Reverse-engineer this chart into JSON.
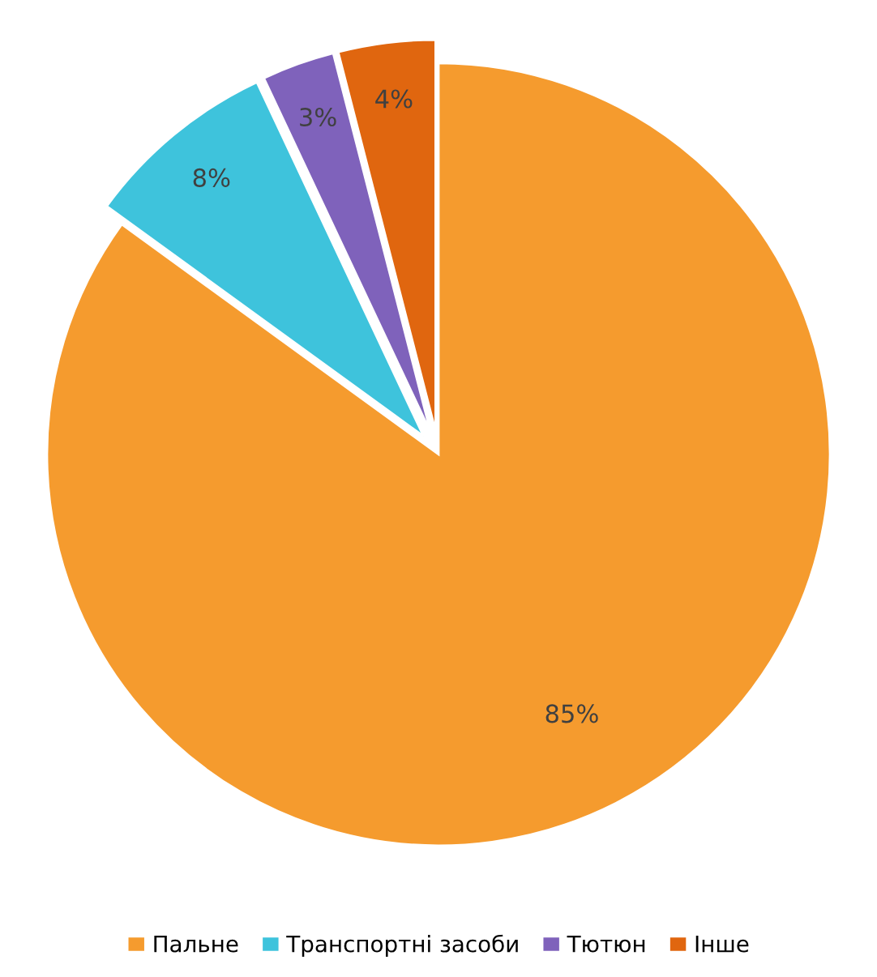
{
  "chart_data": {
    "type": "pie",
    "categories": [
      "Пальне",
      "Транспортні засоби",
      "Тютюн",
      "Інше"
    ],
    "values": [
      85,
      8,
      3,
      4
    ],
    "colors": [
      "#f59b2e",
      "#3ec3dc",
      "#7f62bb",
      "#e0660f"
    ],
    "value_labels": [
      "85%",
      "8%",
      "3%",
      "4%"
    ],
    "legend": "bottom"
  }
}
